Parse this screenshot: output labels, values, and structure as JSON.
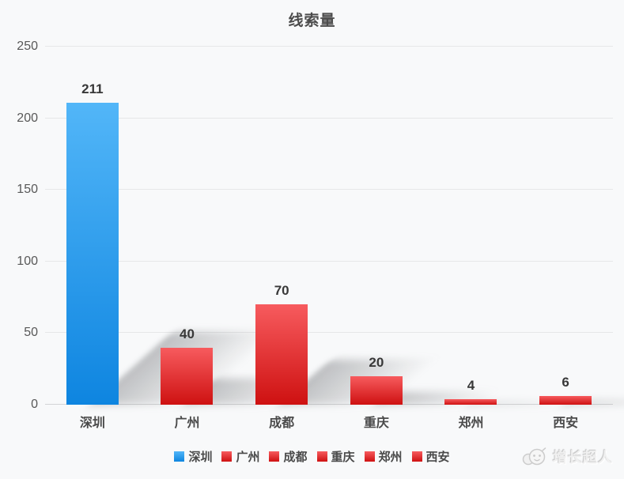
{
  "title": "线索量",
  "chart_data": {
    "type": "bar",
    "title": "线索量",
    "categories": [
      "深圳",
      "广州",
      "成都",
      "重庆",
      "郑州",
      "西安"
    ],
    "values": [
      211,
      40,
      70,
      20,
      4,
      6
    ],
    "value_labels": [
      "211",
      "40",
      "70",
      "20",
      "4",
      "6"
    ],
    "xlabel": "",
    "ylabel": "",
    "ylim": [
      0,
      250
    ],
    "yticks": [
      0,
      50,
      100,
      150,
      200,
      250
    ],
    "grid": true,
    "legend_position": "bottom",
    "legend": [
      {
        "label": "深圳",
        "color_top": "#52b6f8",
        "color_bottom": "#0e85e0"
      },
      {
        "label": "广州",
        "color_top": "#f75b5e",
        "color_bottom": "#ce1111"
      },
      {
        "label": "成都",
        "color_top": "#f75b5e",
        "color_bottom": "#ce1111"
      },
      {
        "label": "重庆",
        "color_top": "#f75b5e",
        "color_bottom": "#ce1111"
      },
      {
        "label": "郑州",
        "color_top": "#f75b5e",
        "color_bottom": "#ce1111"
      },
      {
        "label": "西安",
        "color_top": "#f75b5e",
        "color_bottom": "#ce1111"
      }
    ]
  },
  "watermark": {
    "text": "增长超人"
  },
  "colors": {
    "background": "#f8f9fa",
    "gridline": "#e6e7e8",
    "axis_line": "#d3d4d6",
    "title_text": "#4c4c4c",
    "tick_text": "#585858",
    "value_text": "#383838",
    "blue_bar_top": "#52b6f8",
    "blue_bar_bottom": "#0e85e0",
    "red_bar_top": "#f75b5e",
    "red_bar_bottom": "#ce1111",
    "watermark_text": "#f0f0f0"
  }
}
